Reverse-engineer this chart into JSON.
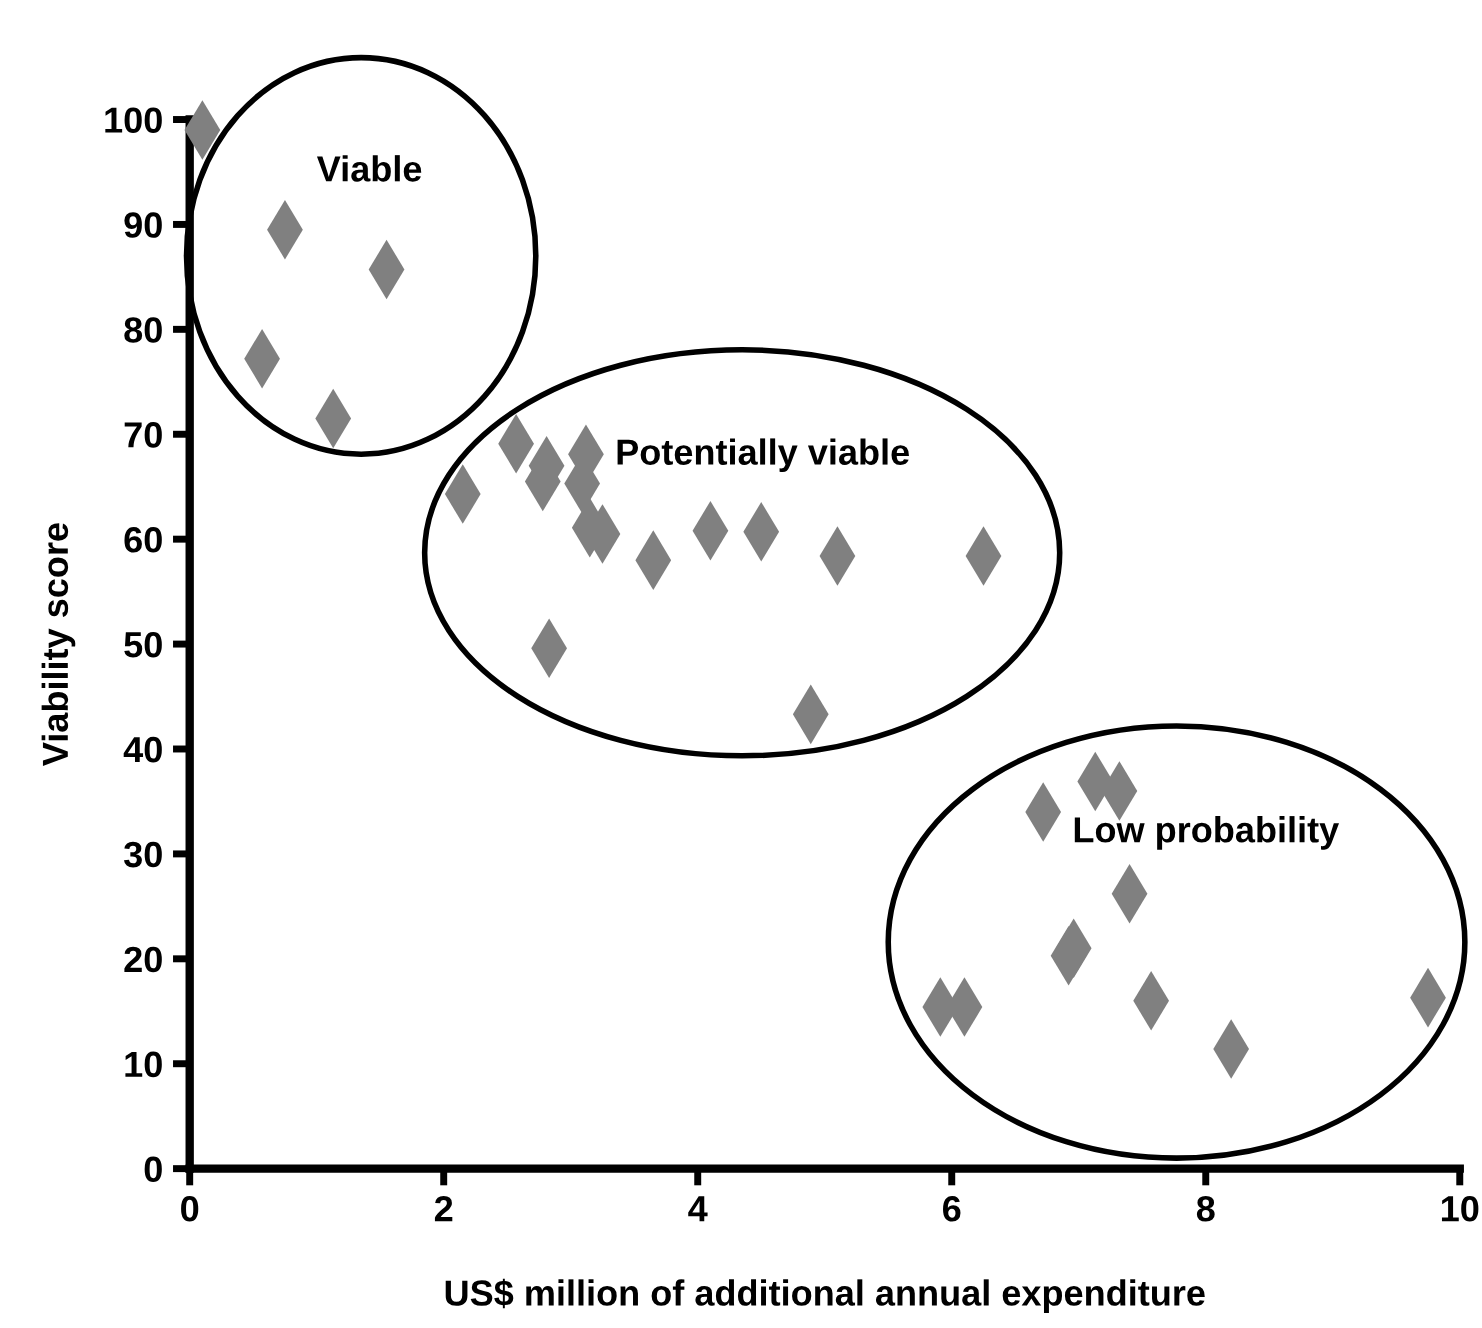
{
  "chart_data": {
    "type": "scatter",
    "xlabel": "US$ million of additional annual expenditure",
    "ylabel": "Viability score",
    "xlim": [
      0,
      10
    ],
    "xticks": [
      0,
      2,
      4,
      6,
      8,
      10
    ],
    "ylim": [
      0,
      100
    ],
    "yticks": [
      0,
      10,
      20,
      30,
      40,
      50,
      60,
      70,
      80,
      90,
      100
    ],
    "grid": false,
    "legend": false,
    "marker": "diamond",
    "series": [
      {
        "color": "#808080",
        "x": [
          0.1,
          0.75,
          1.55,
          0.57,
          1.13,
          2.15,
          2.57,
          2.81,
          2.78,
          3.12,
          3.09,
          3.15,
          3.25,
          2.83,
          3.65,
          4.1,
          4.5,
          5.1,
          6.25,
          4.89,
          6.72,
          7.13,
          7.32,
          7.4,
          6.96,
          6.92,
          5.91,
          6.1,
          7.57,
          8.2,
          9.75
        ],
        "values": [
          99,
          89.5,
          85.7,
          77.2,
          71.5,
          64.3,
          69.1,
          67,
          65.5,
          68.1,
          65.3,
          61.1,
          60.5,
          49.6,
          58,
          60.8,
          60.7,
          58.4,
          58.4,
          43.3,
          34,
          36.9,
          36,
          26.2,
          21,
          20.3,
          15.4,
          15.4,
          16,
          11.4,
          16.3
        ]
      }
    ],
    "annotations": [
      "Viable",
      "Potentially viable",
      "Low probability"
    ]
  }
}
